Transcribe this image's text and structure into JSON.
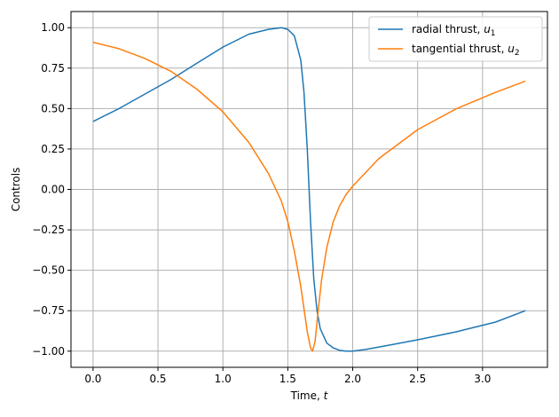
{
  "chart_data": {
    "type": "line",
    "title": "",
    "xlabel": "Time, t",
    "ylabel": "Controls",
    "xlim": [
      -0.17,
      3.5
    ],
    "ylim": [
      -1.1,
      1.1
    ],
    "xticks": [
      0.0,
      0.5,
      1.0,
      1.5,
      2.0,
      2.5,
      3.0
    ],
    "xtick_labels": [
      "0.0",
      "0.5",
      "1.0",
      "1.5",
      "2.0",
      "2.5",
      "3.0"
    ],
    "yticks": [
      1.0,
      0.75,
      0.5,
      0.25,
      0.0,
      -0.25,
      -0.5,
      -0.75,
      -1.0
    ],
    "ytick_labels": [
      "1.00",
      "0.75",
      "0.50",
      "0.25",
      "0.00",
      "−0.25",
      "−0.50",
      "−0.75",
      "−1.00"
    ],
    "grid": true,
    "legend_position": "top-right",
    "series": [
      {
        "name": "radial thrust, u1",
        "legend_text": "radial thrust, ",
        "legend_sym": "u",
        "legend_sub": "1",
        "color": "#1f77b4",
        "x": [
          0.0,
          0.2,
          0.4,
          0.6,
          0.8,
          1.0,
          1.2,
          1.35,
          1.45,
          1.5,
          1.55,
          1.6,
          1.625,
          1.65,
          1.675,
          1.7,
          1.725,
          1.75,
          1.8,
          1.85,
          1.9,
          1.95,
          2.0,
          2.1,
          2.3,
          2.5,
          2.8,
          3.1,
          3.33
        ],
        "y": [
          0.42,
          0.5,
          0.59,
          0.68,
          0.78,
          0.88,
          0.96,
          0.99,
          1.0,
          0.99,
          0.95,
          0.8,
          0.6,
          0.25,
          -0.2,
          -0.55,
          -0.75,
          -0.86,
          -0.95,
          -0.98,
          -0.995,
          -1.0,
          -1.0,
          -0.99,
          -0.96,
          -0.93,
          -0.88,
          -0.82,
          -0.75
        ]
      },
      {
        "name": "tangential thrust, u2",
        "legend_text": "tangential thrust, ",
        "legend_sym": "u",
        "legend_sub": "2",
        "color": "#ff7f0e",
        "x": [
          0.0,
          0.2,
          0.4,
          0.6,
          0.8,
          1.0,
          1.2,
          1.35,
          1.45,
          1.5,
          1.55,
          1.6,
          1.65,
          1.675,
          1.69,
          1.71,
          1.73,
          1.76,
          1.8,
          1.85,
          1.9,
          1.95,
          2.0,
          2.2,
          2.5,
          2.8,
          3.1,
          3.33
        ],
        "y": [
          0.91,
          0.87,
          0.81,
          0.73,
          0.62,
          0.48,
          0.29,
          0.1,
          -0.07,
          -0.2,
          -0.38,
          -0.6,
          -0.88,
          -0.98,
          -1.0,
          -0.94,
          -0.78,
          -0.56,
          -0.36,
          -0.2,
          -0.1,
          -0.03,
          0.02,
          0.19,
          0.37,
          0.5,
          0.6,
          0.67
        ]
      }
    ]
  }
}
